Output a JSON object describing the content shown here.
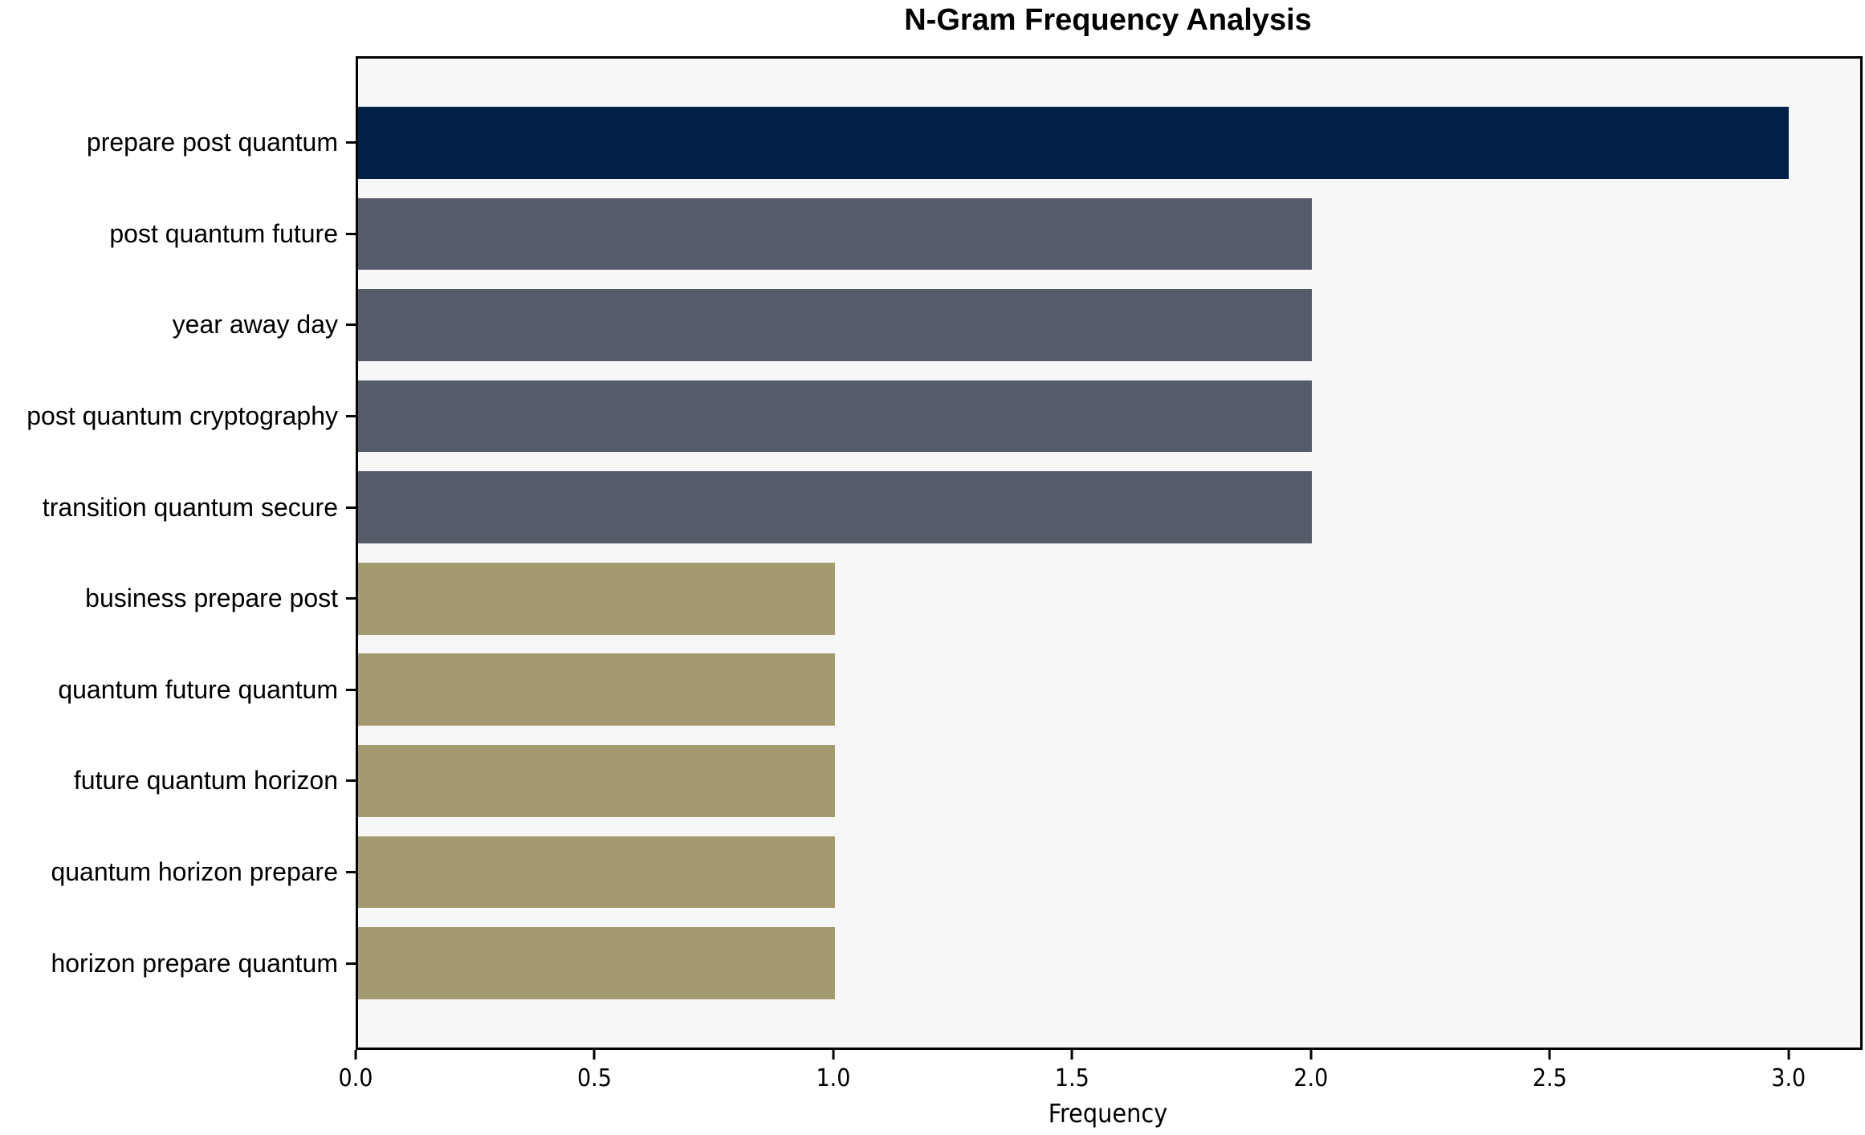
{
  "chart_data": {
    "type": "bar",
    "orientation": "horizontal",
    "title": "N-Gram Frequency Analysis",
    "xlabel": "Frequency",
    "ylabel": "",
    "categories": [
      "prepare post quantum",
      "post quantum future",
      "year away day",
      "post quantum cryptography",
      "transition quantum secure",
      "business prepare post",
      "quantum future quantum",
      "future quantum horizon",
      "quantum horizon prepare",
      "horizon prepare quantum"
    ],
    "values": [
      3,
      2,
      2,
      2,
      2,
      1,
      1,
      1,
      1,
      1
    ],
    "bar_colors": [
      "#022149",
      "#565b6a",
      "#565b6a",
      "#565b6a",
      "#565b6a",
      "#a49a6f",
      "#a49a6f",
      "#a49a6f",
      "#a49a6f",
      "#a49a6f"
    ],
    "xlim": [
      0,
      3.15
    ],
    "xticks": [
      {
        "value": 0.0,
        "label": "0.0"
      },
      {
        "value": 0.5,
        "label": "0.5"
      },
      {
        "value": 1.0,
        "label": "1.0"
      },
      {
        "value": 1.5,
        "label": "1.5"
      },
      {
        "value": 2.0,
        "label": "2.0"
      },
      {
        "value": 2.5,
        "label": "2.5"
      },
      {
        "value": 3.0,
        "label": "3.0"
      }
    ],
    "grid": false,
    "legend": null,
    "plot_background": "#f7f7f8",
    "figure_background": "#ffffff",
    "spine_color": "#000000"
  }
}
